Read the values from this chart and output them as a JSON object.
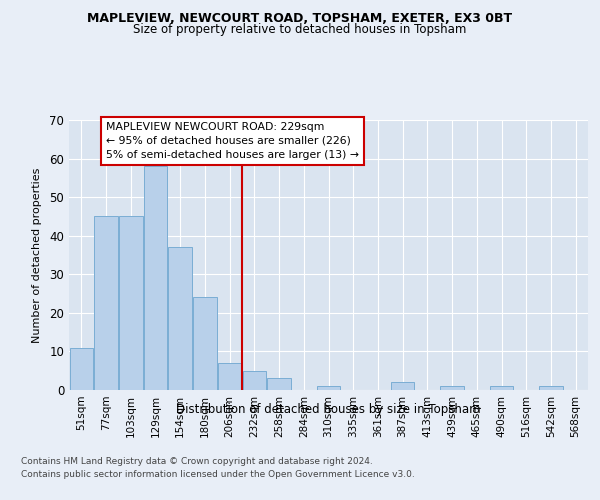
{
  "title1": "MAPLEVIEW, NEWCOURT ROAD, TOPSHAM, EXETER, EX3 0BT",
  "title2": "Size of property relative to detached houses in Topsham",
  "xlabel": "Distribution of detached houses by size in Topsham",
  "ylabel": "Number of detached properties",
  "categories": [
    "51sqm",
    "77sqm",
    "103sqm",
    "129sqm",
    "154sqm",
    "180sqm",
    "206sqm",
    "232sqm",
    "258sqm",
    "284sqm",
    "310sqm",
    "335sqm",
    "361sqm",
    "387sqm",
    "413sqm",
    "439sqm",
    "465sqm",
    "490sqm",
    "516sqm",
    "542sqm",
    "568sqm"
  ],
  "values": [
    11,
    45,
    45,
    58,
    37,
    24,
    7,
    5,
    3,
    0,
    1,
    0,
    0,
    2,
    0,
    1,
    0,
    1,
    0,
    1,
    0
  ],
  "bar_color": "#b8d0ea",
  "bar_edge_color": "#7aadd4",
  "vline_x_index": 6.5,
  "vline_color": "#cc0000",
  "annotation_title": "MAPLEVIEW NEWCOURT ROAD: 229sqm",
  "annotation_line1": "← 95% of detached houses are smaller (226)",
  "annotation_line2": "5% of semi-detached houses are larger (13) →",
  "annotation_box_facecolor": "#ffffff",
  "annotation_box_edgecolor": "#cc0000",
  "footer1": "Contains HM Land Registry data © Crown copyright and database right 2024.",
  "footer2": "Contains public sector information licensed under the Open Government Licence v3.0.",
  "bg_color": "#e8eef7",
  "plot_bg_color": "#dae4f0",
  "ylim": [
    0,
    70
  ],
  "yticks": [
    0,
    10,
    20,
    30,
    40,
    50,
    60,
    70
  ]
}
